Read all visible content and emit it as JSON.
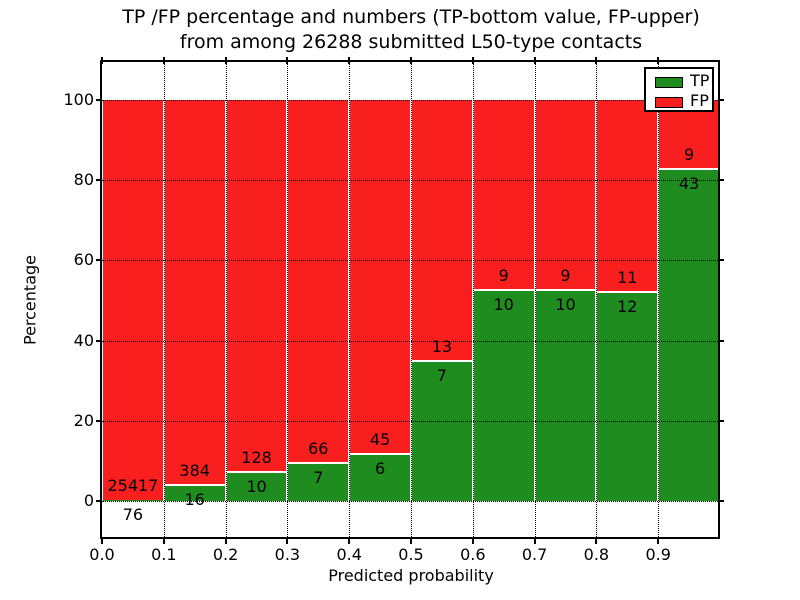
{
  "figure": {
    "background": "#ffffff",
    "title_line1": "TP /FP percentage and numbers (TP-bottom value, FP-upper)",
    "title_line2": "from among 26288 submitted L50-type contacts"
  },
  "chart_data": {
    "type": "bar",
    "subtype": "stacked-100-percent",
    "title": "TP /FP percentage and numbers (TP-bottom value, FP-upper)\nfrom among 26288 submitted L50-type contacts",
    "xlabel": "Predicted probability",
    "ylabel": "Percentage",
    "total_contacts": 26288,
    "x_tick_labels": [
      "0.0",
      "0.1",
      "0.2",
      "0.3",
      "0.4",
      "0.5",
      "0.6",
      "0.7",
      "0.8",
      "0.9"
    ],
    "y_tick_values": [
      0,
      20,
      40,
      60,
      80,
      100
    ],
    "y_tick_labels": [
      "0",
      "20",
      "40",
      "60",
      "80",
      "100"
    ],
    "xlim": [
      0.0,
      1.0
    ],
    "ylim": [
      -9.5,
      109.5
    ],
    "grid": "dotted black, horizontal at y ticks and vertical at x ticks",
    "legend_position": "upper right",
    "legend": {
      "entries": [
        {
          "label": "TP",
          "color": "#1e8c1e"
        },
        {
          "label": "FP",
          "color": "#fa1f1f"
        }
      ]
    },
    "colors": {
      "tp": "#1e8c1e",
      "fp": "#fa1f1f",
      "bar_edge": "#ffffff"
    },
    "bins": [
      {
        "range": [
          0.0,
          0.1
        ],
        "tp": 76,
        "fp": 25417,
        "tp_pct": 0.3
      },
      {
        "range": [
          0.1,
          0.2
        ],
        "tp": 16,
        "fp": 384,
        "tp_pct": 4.0
      },
      {
        "range": [
          0.2,
          0.3
        ],
        "tp": 10,
        "fp": 128,
        "tp_pct": 7.25
      },
      {
        "range": [
          0.3,
          0.4
        ],
        "tp": 7,
        "fp": 66,
        "tp_pct": 9.59
      },
      {
        "range": [
          0.4,
          0.5
        ],
        "tp": 6,
        "fp": 45,
        "tp_pct": 11.76
      },
      {
        "range": [
          0.5,
          0.6
        ],
        "tp": 7,
        "fp": 13,
        "tp_pct": 35.0
      },
      {
        "range": [
          0.6,
          0.7
        ],
        "tp": 10,
        "fp": 9,
        "tp_pct": 52.63
      },
      {
        "range": [
          0.7,
          0.8
        ],
        "tp": 10,
        "fp": 9,
        "tp_pct": 52.63
      },
      {
        "range": [
          0.8,
          0.9
        ],
        "tp": 12,
        "fp": 11,
        "tp_pct": 52.17
      },
      {
        "range": [
          0.9,
          1.0
        ],
        "tp": 43,
        "fp": 9,
        "tp_pct": 82.69
      }
    ]
  }
}
